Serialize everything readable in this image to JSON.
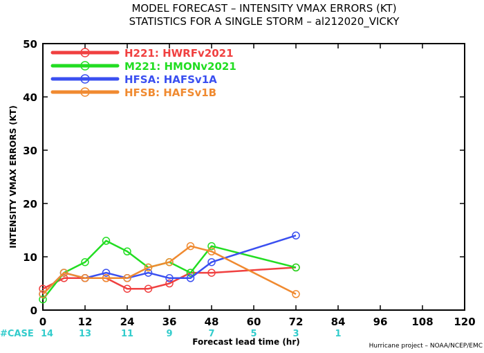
{
  "chart_data": {
    "type": "line",
    "title_lines": [
      "MODEL FORECAST – INTENSITY VMAX ERRORS (KT)",
      "STATISTICS FOR A SINGLE STORM – al212020_VICKY"
    ],
    "xlabel": "Forecast lead time (hr)",
    "ylabel": "INTENSITY VMAX ERRORS (KT)",
    "xlim": [
      0,
      120
    ],
    "ylim": [
      0,
      50
    ],
    "xticks": [
      "0",
      "12",
      "24",
      "36",
      "48",
      "60",
      "72",
      "84",
      "96",
      "108",
      "120"
    ],
    "yticks": [
      "0",
      "10",
      "20",
      "30",
      "40",
      "50"
    ],
    "grid": false,
    "legend_position": "top-left",
    "series": [
      {
        "name": "H221: HWRFv2021",
        "color": "#f04040",
        "points": [
          [
            0,
            4
          ],
          [
            6,
            6
          ],
          [
            12,
            6
          ],
          [
            18,
            6
          ],
          [
            24,
            4
          ],
          [
            30,
            4
          ],
          [
            36,
            5
          ],
          [
            42,
            7
          ],
          [
            48,
            7
          ],
          [
            72,
            8
          ]
        ]
      },
      {
        "name": "M221: HMONv2021",
        "color": "#22dd22",
        "points": [
          [
            0,
            2
          ],
          [
            6,
            7
          ],
          [
            12,
            9
          ],
          [
            18,
            13
          ],
          [
            24,
            11
          ],
          [
            30,
            8
          ],
          [
            36,
            9
          ],
          [
            42,
            7
          ],
          [
            48,
            12
          ],
          [
            72,
            8
          ]
        ]
      },
      {
        "name": "HFSA: HAFSv1A",
        "color": "#3a4ff0",
        "points": [
          [
            0,
            3
          ],
          [
            6,
            7
          ],
          [
            12,
            6
          ],
          [
            18,
            7
          ],
          [
            24,
            6
          ],
          [
            30,
            7
          ],
          [
            36,
            6
          ],
          [
            42,
            6
          ],
          [
            48,
            9
          ],
          [
            72,
            14
          ]
        ]
      },
      {
        "name": "HFSB: HAFSv1B",
        "color": "#f08a30",
        "points": [
          [
            0,
            3
          ],
          [
            6,
            7
          ],
          [
            12,
            6
          ],
          [
            18,
            6
          ],
          [
            24,
            6
          ],
          [
            30,
            8
          ],
          [
            36,
            9
          ],
          [
            42,
            12
          ],
          [
            48,
            11
          ],
          [
            72,
            3
          ]
        ]
      }
    ],
    "cases": {
      "label": "#CASE",
      "color": "#33cccc",
      "items": [
        {
          "x": 0,
          "n": "14"
        },
        {
          "x": 12,
          "n": "13"
        },
        {
          "x": 24,
          "n": "11"
        },
        {
          "x": 36,
          "n": "9"
        },
        {
          "x": 48,
          "n": "7"
        },
        {
          "x": 60,
          "n": "5"
        },
        {
          "x": 72,
          "n": "3"
        },
        {
          "x": 84,
          "n": "1"
        }
      ]
    },
    "credit": "Hurricane project – NOAA/NCEP/EMC"
  }
}
